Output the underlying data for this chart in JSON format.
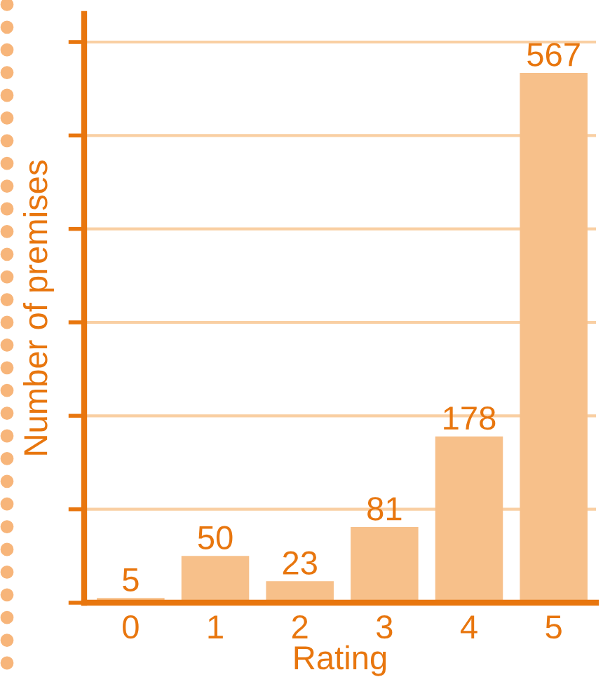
{
  "chart_data": {
    "type": "bar",
    "xlabel": "Rating",
    "ylabel": "Number of premises",
    "categories": [
      "0",
      "1",
      "2",
      "3",
      "4",
      "5"
    ],
    "values": [
      5,
      50,
      23,
      81,
      178,
      567
    ],
    "color": "#f7c08a",
    "data_labels": true,
    "grid": "y",
    "legend": false,
    "ylim": [
      0,
      630
    ],
    "yticks": [
      {
        "value": 0,
        "label": null
      },
      {
        "value": 100,
        "label": null
      },
      {
        "value": 200,
        "label": null
      },
      {
        "value": 300,
        "label": null
      },
      {
        "value": 400,
        "label": null
      },
      {
        "value": 500,
        "label": null
      },
      {
        "value": 600,
        "label": null
      }
    ]
  }
}
